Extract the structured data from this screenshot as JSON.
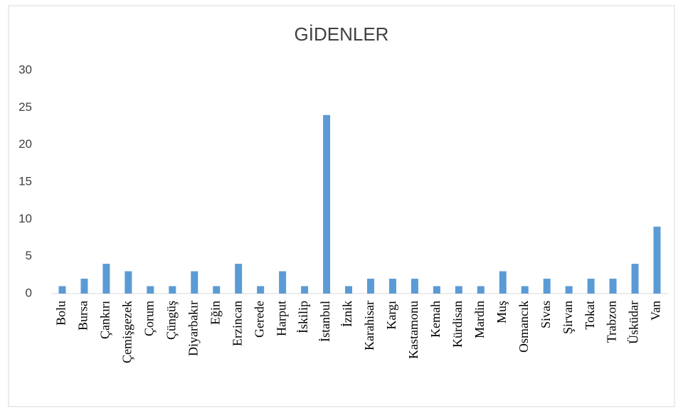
{
  "chart_data": {
    "type": "bar",
    "title": "GİDENLER",
    "categories": [
      "Bolu",
      "Bursa",
      "Çankırı",
      "Çemişgezek",
      "Çorum",
      "Çüngüş",
      "Diyarbakır",
      "Eğin",
      "Erzincan",
      "Gerede",
      "Harput",
      "İskilip",
      "İstanbul",
      "İznik",
      "Karahisar",
      "Kargı",
      "Kastamonu",
      "Kemah",
      "Kürdisan",
      "Mardin",
      "Muş",
      "Osmancık",
      "Sivas",
      "Şirvan",
      "Tokat",
      "Trabzon",
      "Üsküdar",
      "Van"
    ],
    "values": [
      1,
      2,
      4,
      3,
      1,
      1,
      3,
      1,
      4,
      1,
      3,
      1,
      24,
      1,
      2,
      2,
      2,
      1,
      1,
      1,
      3,
      1,
      2,
      1,
      2,
      2,
      4,
      9
    ],
    "color": "#5b9bd5",
    "ylim": [
      0,
      30
    ],
    "yticks": [
      0,
      5,
      10,
      15,
      20,
      25,
      30
    ],
    "grid": false
  }
}
